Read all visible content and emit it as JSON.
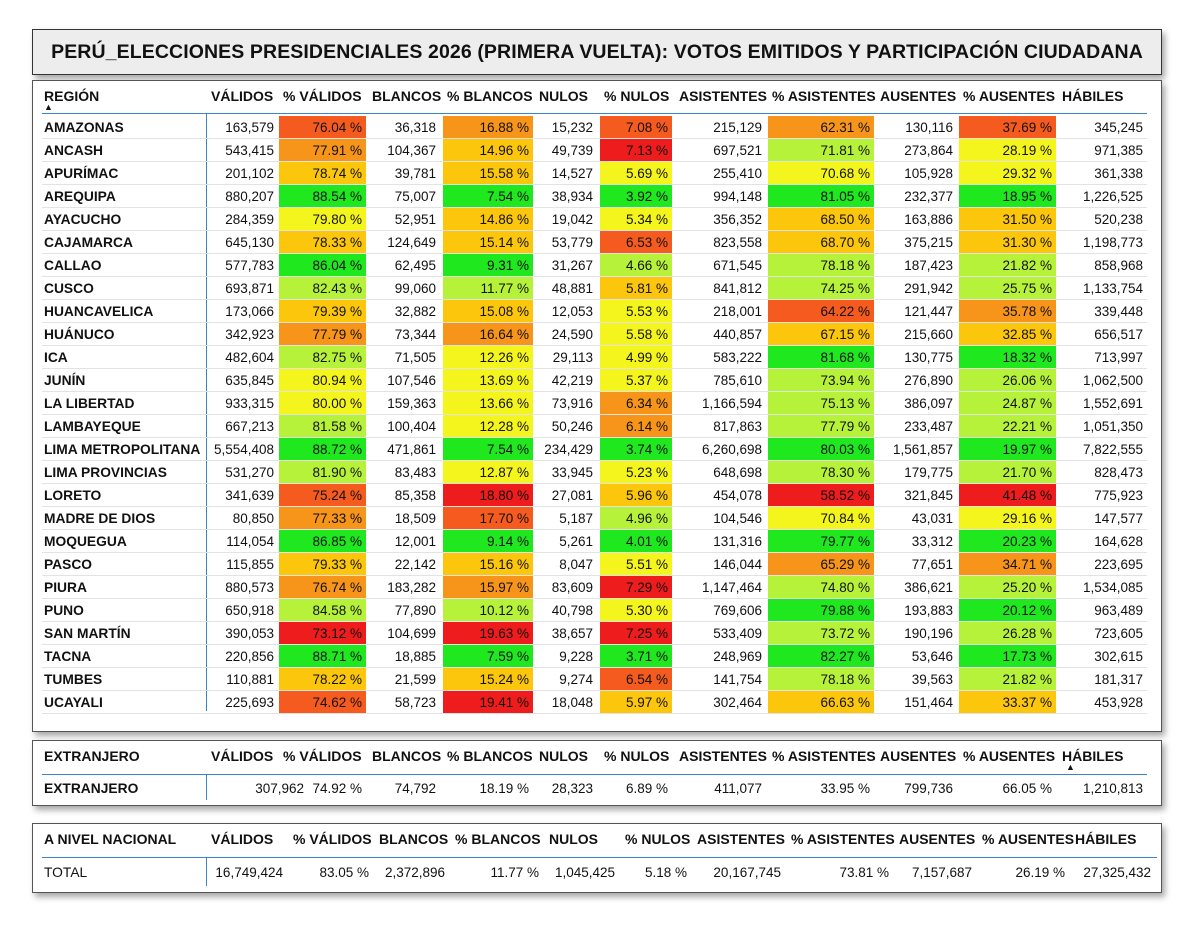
{
  "title": "PERÚ_ELECCIONES PRESIDENCIALES 2026 (PRIMERA VUELTA): VOTOS EMITIDOS Y PARTICIPACIÓN CIUDADANA",
  "columns": {
    "region": "REGIÓN",
    "validos": "VÁLIDOS",
    "pct_validos": "% VÁLIDOS",
    "blancos": "BLANCOS",
    "pct_blancos": "% BLANCOS",
    "nulos": "NULOS",
    "pct_nulos": "% NULOS",
    "asistentes": "ASISTENTES",
    "pct_asistentes": "% ASISTENTES",
    "ausentes": "AUSENTES",
    "pct_ausentes": "% AUSENTES",
    "habiles": "HÁBILES"
  },
  "sort_indicator": "▲",
  "heat_colors": {
    "green": "#1fe81f",
    "lime": "#b6f23a",
    "yellow": "#f5f51e",
    "amber": "#fbc60c",
    "orange": "#f7941a",
    "red_orange": "#f55a1e",
    "red": "#ee1c1c"
  },
  "regions": [
    {
      "name": "AMAZONAS",
      "validos": "163,579",
      "pct_validos": "76.04 %",
      "blancos": "36,318",
      "pct_blancos": "16.88 %",
      "nulos": "15,232",
      "pct_nulos": "7.08 %",
      "asistentes": "215,129",
      "pct_asistentes": "62.31 %",
      "ausentes": "130,116",
      "pct_ausentes": "37.69 %",
      "habiles": "345,245",
      "c": [
        "red_orange",
        "orange",
        "red_orange",
        "orange",
        "red_orange"
      ]
    },
    {
      "name": "ANCASH",
      "validos": "543,415",
      "pct_validos": "77.91 %",
      "blancos": "104,367",
      "pct_blancos": "14.96 %",
      "nulos": "49,739",
      "pct_nulos": "7.13 %",
      "asistentes": "697,521",
      "pct_asistentes": "71.81 %",
      "ausentes": "273,864",
      "pct_ausentes": "28.19 %",
      "habiles": "971,385",
      "c": [
        "orange",
        "amber",
        "red",
        "lime",
        "yellow"
      ]
    },
    {
      "name": "APURÍMAC",
      "validos": "201,102",
      "pct_validos": "78.74 %",
      "blancos": "39,781",
      "pct_blancos": "15.58 %",
      "nulos": "14,527",
      "pct_nulos": "5.69 %",
      "asistentes": "255,410",
      "pct_asistentes": "70.68 %",
      "ausentes": "105,928",
      "pct_ausentes": "29.32 %",
      "habiles": "361,338",
      "c": [
        "amber",
        "amber",
        "yellow",
        "yellow",
        "yellow"
      ]
    },
    {
      "name": "AREQUIPA",
      "validos": "880,207",
      "pct_validos": "88.54 %",
      "blancos": "75,007",
      "pct_blancos": "7.54 %",
      "nulos": "38,934",
      "pct_nulos": "3.92 %",
      "asistentes": "994,148",
      "pct_asistentes": "81.05 %",
      "ausentes": "232,377",
      "pct_ausentes": "18.95 %",
      "habiles": "1,226,525",
      "c": [
        "green",
        "green",
        "green",
        "green",
        "green"
      ]
    },
    {
      "name": "AYACUCHO",
      "validos": "284,359",
      "pct_validos": "79.80 %",
      "blancos": "52,951",
      "pct_blancos": "14.86 %",
      "nulos": "19,042",
      "pct_nulos": "5.34 %",
      "asistentes": "356,352",
      "pct_asistentes": "68.50 %",
      "ausentes": "163,886",
      "pct_ausentes": "31.50 %",
      "habiles": "520,238",
      "c": [
        "yellow",
        "amber",
        "yellow",
        "amber",
        "amber"
      ]
    },
    {
      "name": "CAJAMARCA",
      "validos": "645,130",
      "pct_validos": "78.33 %",
      "blancos": "124,649",
      "pct_blancos": "15.14 %",
      "nulos": "53,779",
      "pct_nulos": "6.53 %",
      "asistentes": "823,558",
      "pct_asistentes": "68.70 %",
      "ausentes": "375,215",
      "pct_ausentes": "31.30 %",
      "habiles": "1,198,773",
      "c": [
        "amber",
        "amber",
        "red_orange",
        "amber",
        "amber"
      ]
    },
    {
      "name": "CALLAO",
      "validos": "577,783",
      "pct_validos": "86.04 %",
      "blancos": "62,495",
      "pct_blancos": "9.31 %",
      "nulos": "31,267",
      "pct_nulos": "4.66 %",
      "asistentes": "671,545",
      "pct_asistentes": "78.18 %",
      "ausentes": "187,423",
      "pct_ausentes": "21.82 %",
      "habiles": "858,968",
      "c": [
        "green",
        "green",
        "lime",
        "lime",
        "lime"
      ]
    },
    {
      "name": "CUSCO",
      "validos": "693,871",
      "pct_validos": "82.43 %",
      "blancos": "99,060",
      "pct_blancos": "11.77 %",
      "nulos": "48,881",
      "pct_nulos": "5.81 %",
      "asistentes": "841,812",
      "pct_asistentes": "74.25 %",
      "ausentes": "291,942",
      "pct_ausentes": "25.75 %",
      "habiles": "1,133,754",
      "c": [
        "lime",
        "lime",
        "amber",
        "lime",
        "lime"
      ]
    },
    {
      "name": "HUANCAVELICA",
      "validos": "173,066",
      "pct_validos": "79.39 %",
      "blancos": "32,882",
      "pct_blancos": "15.08 %",
      "nulos": "12,053",
      "pct_nulos": "5.53 %",
      "asistentes": "218,001",
      "pct_asistentes": "64.22 %",
      "ausentes": "121,447",
      "pct_ausentes": "35.78 %",
      "habiles": "339,448",
      "c": [
        "amber",
        "amber",
        "yellow",
        "red_orange",
        "orange"
      ]
    },
    {
      "name": "HUÁNUCO",
      "validos": "342,923",
      "pct_validos": "77.79 %",
      "blancos": "73,344",
      "pct_blancos": "16.64 %",
      "nulos": "24,590",
      "pct_nulos": "5.58 %",
      "asistentes": "440,857",
      "pct_asistentes": "67.15 %",
      "ausentes": "215,660",
      "pct_ausentes": "32.85 %",
      "habiles": "656,517",
      "c": [
        "orange",
        "orange",
        "yellow",
        "amber",
        "amber"
      ]
    },
    {
      "name": "ICA",
      "validos": "482,604",
      "pct_validos": "82.75 %",
      "blancos": "71,505",
      "pct_blancos": "12.26 %",
      "nulos": "29,113",
      "pct_nulos": "4.99 %",
      "asistentes": "583,222",
      "pct_asistentes": "81.68 %",
      "ausentes": "130,775",
      "pct_ausentes": "18.32 %",
      "habiles": "713,997",
      "c": [
        "lime",
        "yellow",
        "yellow",
        "green",
        "green"
      ]
    },
    {
      "name": "JUNÍN",
      "validos": "635,845",
      "pct_validos": "80.94 %",
      "blancos": "107,546",
      "pct_blancos": "13.69 %",
      "nulos": "42,219",
      "pct_nulos": "5.37 %",
      "asistentes": "785,610",
      "pct_asistentes": "73.94 %",
      "ausentes": "276,890",
      "pct_ausentes": "26.06 %",
      "habiles": "1,062,500",
      "c": [
        "yellow",
        "yellow",
        "yellow",
        "lime",
        "lime"
      ]
    },
    {
      "name": "LA LIBERTAD",
      "validos": "933,315",
      "pct_validos": "80.00 %",
      "blancos": "159,363",
      "pct_blancos": "13.66 %",
      "nulos": "73,916",
      "pct_nulos": "6.34 %",
      "asistentes": "1,166,594",
      "pct_asistentes": "75.13 %",
      "ausentes": "386,097",
      "pct_ausentes": "24.87 %",
      "habiles": "1,552,691",
      "c": [
        "yellow",
        "yellow",
        "orange",
        "lime",
        "lime"
      ]
    },
    {
      "name": "LAMBAYEQUE",
      "validos": "667,213",
      "pct_validos": "81.58 %",
      "blancos": "100,404",
      "pct_blancos": "12.28 %",
      "nulos": "50,246",
      "pct_nulos": "6.14 %",
      "asistentes": "817,863",
      "pct_asistentes": "77.79 %",
      "ausentes": "233,487",
      "pct_ausentes": "22.21 %",
      "habiles": "1,051,350",
      "c": [
        "lime",
        "yellow",
        "orange",
        "lime",
        "lime"
      ]
    },
    {
      "name": "LIMA METROPOLITANA",
      "validos": "5,554,408",
      "pct_validos": "88.72 %",
      "blancos": "471,861",
      "pct_blancos": "7.54 %",
      "nulos": "234,429",
      "pct_nulos": "3.74 %",
      "asistentes": "6,260,698",
      "pct_asistentes": "80.03 %",
      "ausentes": "1,561,857",
      "pct_ausentes": "19.97 %",
      "habiles": "7,822,555",
      "c": [
        "green",
        "green",
        "green",
        "green",
        "green"
      ]
    },
    {
      "name": "LIMA PROVINCIAS",
      "validos": "531,270",
      "pct_validos": "81.90 %",
      "blancos": "83,483",
      "pct_blancos": "12.87 %",
      "nulos": "33,945",
      "pct_nulos": "5.23 %",
      "asistentes": "648,698",
      "pct_asistentes": "78.30 %",
      "ausentes": "179,775",
      "pct_ausentes": "21.70 %",
      "habiles": "828,473",
      "c": [
        "lime",
        "yellow",
        "yellow",
        "lime",
        "lime"
      ]
    },
    {
      "name": "LORETO",
      "validos": "341,639",
      "pct_validos": "75.24 %",
      "blancos": "85,358",
      "pct_blancos": "18.80 %",
      "nulos": "27,081",
      "pct_nulos": "5.96 %",
      "asistentes": "454,078",
      "pct_asistentes": "58.52 %",
      "ausentes": "321,845",
      "pct_ausentes": "41.48 %",
      "habiles": "775,923",
      "c": [
        "red_orange",
        "red",
        "amber",
        "red",
        "red"
      ]
    },
    {
      "name": "MADRE DE DIOS",
      "validos": "80,850",
      "pct_validos": "77.33 %",
      "blancos": "18,509",
      "pct_blancos": "17.70 %",
      "nulos": "5,187",
      "pct_nulos": "4.96 %",
      "asistentes": "104,546",
      "pct_asistentes": "70.84 %",
      "ausentes": "43,031",
      "pct_ausentes": "29.16 %",
      "habiles": "147,577",
      "c": [
        "orange",
        "red_orange",
        "lime",
        "yellow",
        "yellow"
      ]
    },
    {
      "name": "MOQUEGUA",
      "validos": "114,054",
      "pct_validos": "86.85 %",
      "blancos": "12,001",
      "pct_blancos": "9.14 %",
      "nulos": "5,261",
      "pct_nulos": "4.01 %",
      "asistentes": "131,316",
      "pct_asistentes": "79.77 %",
      "ausentes": "33,312",
      "pct_ausentes": "20.23 %",
      "habiles": "164,628",
      "c": [
        "green",
        "green",
        "green",
        "green",
        "green"
      ]
    },
    {
      "name": "PASCO",
      "validos": "115,855",
      "pct_validos": "79.33 %",
      "blancos": "22,142",
      "pct_blancos": "15.16 %",
      "nulos": "8,047",
      "pct_nulos": "5.51 %",
      "asistentes": "146,044",
      "pct_asistentes": "65.29 %",
      "ausentes": "77,651",
      "pct_ausentes": "34.71 %",
      "habiles": "223,695",
      "c": [
        "amber",
        "amber",
        "yellow",
        "orange",
        "orange"
      ]
    },
    {
      "name": "PIURA",
      "validos": "880,573",
      "pct_validos": "76.74 %",
      "blancos": "183,282",
      "pct_blancos": "15.97 %",
      "nulos": "83,609",
      "pct_nulos": "7.29 %",
      "asistentes": "1,147,464",
      "pct_asistentes": "74.80 %",
      "ausentes": "386,621",
      "pct_ausentes": "25.20 %",
      "habiles": "1,534,085",
      "c": [
        "orange",
        "orange",
        "red",
        "lime",
        "lime"
      ]
    },
    {
      "name": "PUNO",
      "validos": "650,918",
      "pct_validos": "84.58 %",
      "blancos": "77,890",
      "pct_blancos": "10.12 %",
      "nulos": "40,798",
      "pct_nulos": "5.30 %",
      "asistentes": "769,606",
      "pct_asistentes": "79.88 %",
      "ausentes": "193,883",
      "pct_ausentes": "20.12 %",
      "habiles": "963,489",
      "c": [
        "lime",
        "lime",
        "yellow",
        "green",
        "green"
      ]
    },
    {
      "name": "SAN MARTÍN",
      "validos": "390,053",
      "pct_validos": "73.12 %",
      "blancos": "104,699",
      "pct_blancos": "19.63 %",
      "nulos": "38,657",
      "pct_nulos": "7.25 %",
      "asistentes": "533,409",
      "pct_asistentes": "73.72 %",
      "ausentes": "190,196",
      "pct_ausentes": "26.28 %",
      "habiles": "723,605",
      "c": [
        "red",
        "red",
        "red",
        "lime",
        "lime"
      ]
    },
    {
      "name": "TACNA",
      "validos": "220,856",
      "pct_validos": "88.71 %",
      "blancos": "18,885",
      "pct_blancos": "7.59 %",
      "nulos": "9,228",
      "pct_nulos": "3.71 %",
      "asistentes": "248,969",
      "pct_asistentes": "82.27 %",
      "ausentes": "53,646",
      "pct_ausentes": "17.73 %",
      "habiles": "302,615",
      "c": [
        "green",
        "green",
        "green",
        "green",
        "green"
      ]
    },
    {
      "name": "TUMBES",
      "validos": "110,881",
      "pct_validos": "78.22 %",
      "blancos": "21,599",
      "pct_blancos": "15.24 %",
      "nulos": "9,274",
      "pct_nulos": "6.54 %",
      "asistentes": "141,754",
      "pct_asistentes": "78.18 %",
      "ausentes": "39,563",
      "pct_ausentes": "21.82 %",
      "habiles": "181,317",
      "c": [
        "amber",
        "amber",
        "red_orange",
        "lime",
        "lime"
      ]
    },
    {
      "name": "UCAYALI",
      "validos": "225,693",
      "pct_validos": "74.62 %",
      "blancos": "58,723",
      "pct_blancos": "19.41 %",
      "nulos": "18,048",
      "pct_nulos": "5.97 %",
      "asistentes": "302,464",
      "pct_asistentes": "66.63 %",
      "ausentes": "151,464",
      "pct_ausentes": "33.37 %",
      "habiles": "453,928",
      "c": [
        "red_orange",
        "red",
        "amber",
        "amber",
        "amber"
      ]
    }
  ],
  "extranjero": {
    "header": "EXTRANJERO",
    "row": {
      "name": "EXTRANJERO",
      "validos": "307,962",
      "pct_validos": "74.92 %",
      "blancos": "74,792",
      "pct_blancos": "18.19 %",
      "nulos": "28,323",
      "pct_nulos": "6.89 %",
      "asistentes": "411,077",
      "pct_asistentes": "33.95 %",
      "ausentes": "799,736",
      "pct_ausentes": "66.05 %",
      "habiles": "1,210,813"
    }
  },
  "nacional": {
    "header": "A NIVEL NACIONAL",
    "row": {
      "name": "TOTAL",
      "validos": "16,749,424",
      "pct_validos": "83.05 %",
      "blancos": "2,372,896",
      "pct_blancos": "11.77 %",
      "nulos": "1,045,425",
      "pct_nulos": "5.18 %",
      "asistentes": "20,167,745",
      "pct_asistentes": "73.81 %",
      "ausentes": "7,157,687",
      "pct_ausentes": "26.19 %",
      "habiles": "27,325,432"
    }
  }
}
